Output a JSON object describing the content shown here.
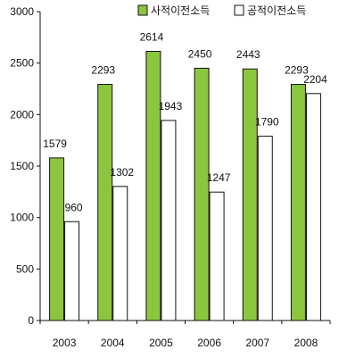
{
  "chart_data": {
    "type": "bar",
    "categories": [
      "2003",
      "2004",
      "2005",
      "2006",
      "2007",
      "2008"
    ],
    "series": [
      {
        "name": "사적이전소득",
        "values": [
          1579,
          2293,
          2614,
          2450,
          2443,
          2293
        ],
        "color": "#8cc63f"
      },
      {
        "name": "공적이전소득",
        "values": [
          960,
          1302,
          1943,
          1247,
          1790,
          2204
        ],
        "color": "#ffffff"
      }
    ],
    "y_ticks": [
      "0",
      "500",
      "1000",
      "1500",
      "2000",
      "2500",
      "3000"
    ],
    "ylim": [
      0,
      3000
    ],
    "grid": false,
    "legend_position": "top-right",
    "bar_outline_color": "#111111"
  }
}
